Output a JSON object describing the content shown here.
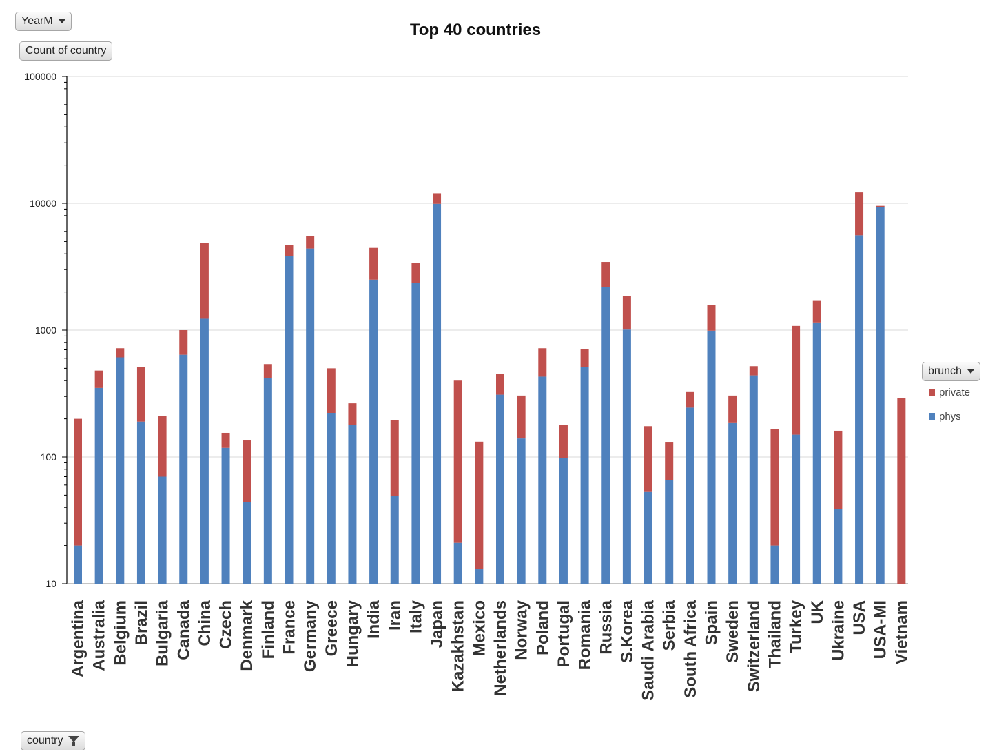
{
  "pivot": {
    "yearm_label": "YearM",
    "count_label": "Count of country",
    "brunch_label": "brunch",
    "country_label": "country"
  },
  "icons": {
    "dropdown": "chevron-down-icon",
    "filter": "filter-icon"
  },
  "colors": {
    "private": "#c0504d",
    "phys": "#4f81bd",
    "grid": "#d9d9d9",
    "axis": "#000000"
  },
  "chart_data": {
    "type": "bar",
    "stacked": true,
    "title": "Top 40 countries",
    "yscale": "log",
    "ylim": [
      10,
      100000
    ],
    "yticks": [
      "100000",
      "10000",
      "1000",
      "100",
      "10"
    ],
    "grid": true,
    "legend_position": "right",
    "categories": [
      "Argentina",
      "Australia",
      "Belgium",
      "Brazil",
      "Bulgaria",
      "Canada",
      "China",
      "Czech",
      "Denmark",
      "Finland",
      "France",
      "Germany",
      "Greece",
      "Hungary",
      "India",
      "Iran",
      "Italy",
      "Japan",
      "Kazakhstan",
      "Mexico",
      "Netherlands",
      "Norway",
      "Poland",
      "Portugal",
      "Romania",
      "Russia",
      "S.Korea",
      "Saudi Arabia",
      "Serbia",
      "South Africa",
      "Spain",
      "Sweden",
      "Switzerland",
      "Thailand",
      "Turkey",
      "UK",
      "Ukraine",
      "USA",
      "USA-MI",
      "Vietnam"
    ],
    "series": [
      {
        "name": "phys",
        "values": [
          20,
          350,
          610,
          190,
          70,
          640,
          1230,
          118,
          44,
          420,
          3850,
          4400,
          220,
          180,
          2500,
          49,
          2350,
          9900,
          21,
          13,
          310,
          140,
          430,
          98,
          510,
          2200,
          1010,
          53,
          66,
          245,
          990,
          185,
          440,
          20,
          150,
          1150,
          39,
          5600,
          9300,
          0
        ]
      },
      {
        "name": "private",
        "values": [
          180,
          130,
          110,
          320,
          140,
          360,
          3670,
          37,
          91,
          120,
          850,
          1150,
          280,
          85,
          1950,
          147,
          1050,
          2100,
          379,
          119,
          140,
          165,
          290,
          82,
          200,
          1250,
          840,
          122,
          64,
          80,
          590,
          120,
          80,
          145,
          930,
          550,
          122,
          6600,
          250,
          290
        ]
      }
    ]
  }
}
